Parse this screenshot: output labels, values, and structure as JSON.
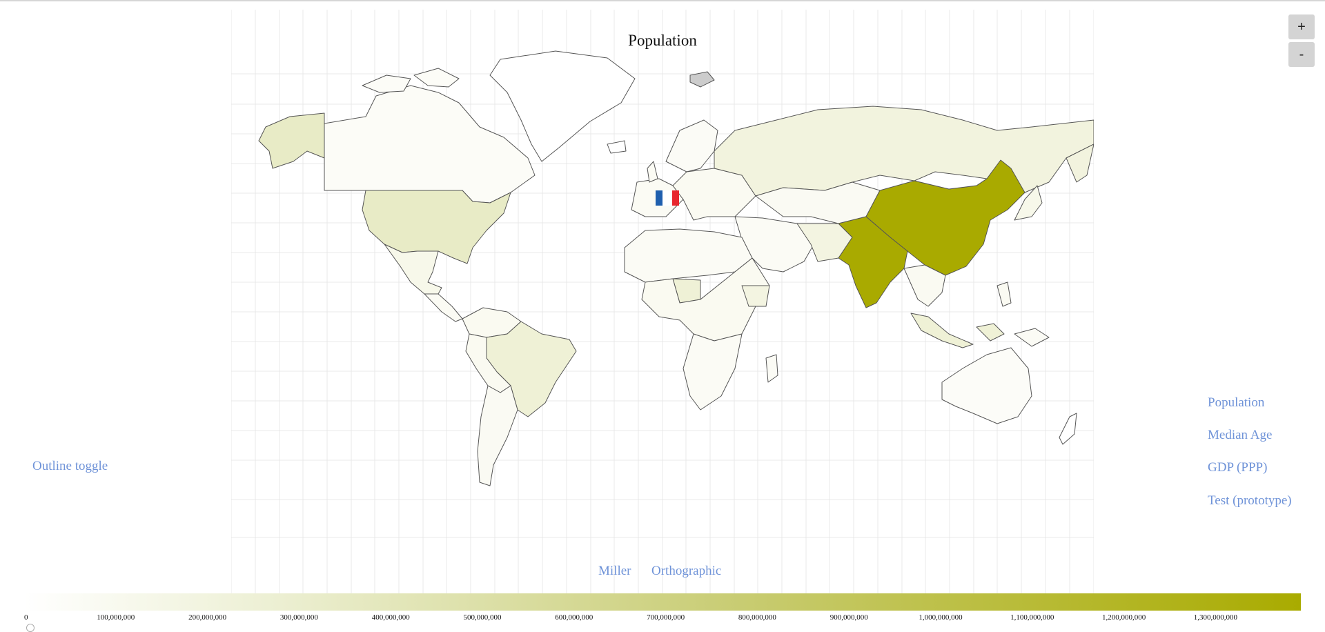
{
  "map": {
    "title": "Population",
    "marker_flag": "france-flag"
  },
  "zoom": {
    "in_label": "+",
    "out_label": "-"
  },
  "left_controls": {
    "outline_toggle_label": "Outline toggle"
  },
  "dataset_menu": {
    "items": [
      "Population",
      "Median Age",
      "GDP (PPP)",
      "Test (prototype)"
    ]
  },
  "projection_links": {
    "miller_label": "Miller",
    "orthographic_label": "Orthographic"
  },
  "legend": {
    "ticks": [
      "0",
      "100,000,000",
      "200,000,000",
      "300,000,000",
      "400,000,000",
      "500,000,000",
      "600,000,000",
      "700,000,000",
      "800,000,000",
      "900,000,000",
      "1,000,000,000",
      "1,100,000,000",
      "1,200,000,000",
      "1,300,000,000"
    ],
    "color_low": "#ffffff",
    "color_high": "#a9ab00"
  },
  "colors": {
    "link": "#6f93d8",
    "country_stroke": "#555555",
    "graticule": "#e8e8e8",
    "china_india": "#a9aa00",
    "usa": "#e8ebc6",
    "russia": "#f2f3de",
    "brazil_indonesia": "#eff1d6"
  }
}
